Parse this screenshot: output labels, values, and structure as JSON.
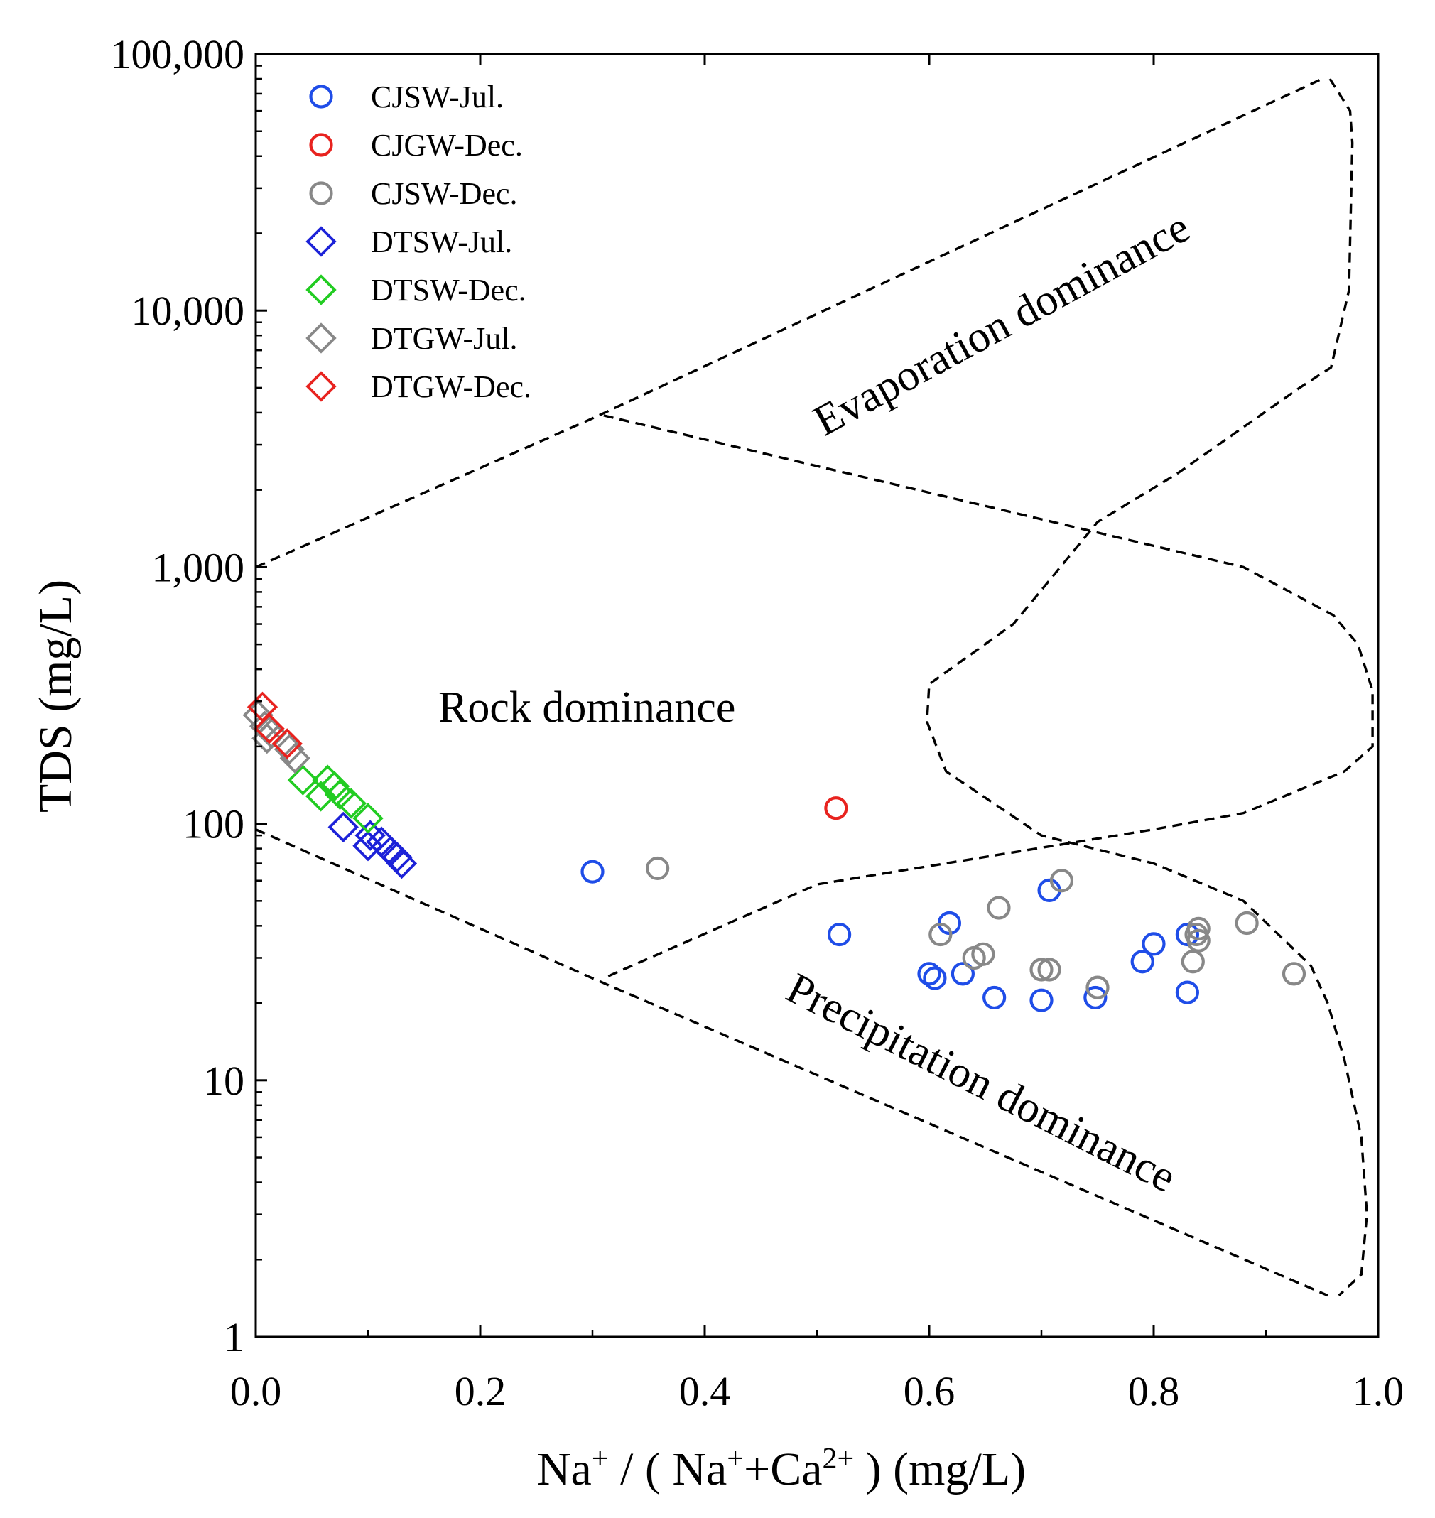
{
  "chart_data": {
    "type": "scatter",
    "title": "",
    "xlabel": "Na⁺ / ( Na⁺+Ca²⁺ ) (mg/L)",
    "xlabel_parts": {
      "a": "Na",
      "sup1": "+",
      "b": " / ( Na",
      "sup2": "+",
      "c": "+Ca",
      "sup3": "2+",
      "d": " ) (mg/L)"
    },
    "ylabel": "TDS (mg/L)",
    "xlim": [
      0.0,
      1.0
    ],
    "ylim": [
      1,
      100000
    ],
    "yscale": "log",
    "xticks": [
      0.0,
      0.2,
      0.4,
      0.6,
      0.8,
      1.0
    ],
    "xtick_labels": [
      "0.0",
      "0.2",
      "0.4",
      "0.6",
      "0.8",
      "1.0"
    ],
    "yticks": [
      1,
      10,
      100,
      1000,
      10000,
      100000
    ],
    "ytick_labels": [
      "1",
      "10",
      "100",
      "1,000",
      "10,000",
      "100,000"
    ],
    "legend_position": "top-left",
    "grid": false,
    "series": [
      {
        "name": "CJSW-Jul.",
        "marker": "circle",
        "color": "#1f4de8",
        "points": [
          [
            0.3,
            65
          ],
          [
            0.52,
            37
          ],
          [
            0.6,
            26
          ],
          [
            0.605,
            25
          ],
          [
            0.618,
            41
          ],
          [
            0.63,
            26
          ],
          [
            0.658,
            21
          ],
          [
            0.7,
            20.5
          ],
          [
            0.707,
            55
          ],
          [
            0.748,
            21
          ],
          [
            0.79,
            29
          ],
          [
            0.8,
            34
          ],
          [
            0.83,
            37
          ],
          [
            0.83,
            22
          ]
        ]
      },
      {
        "name": "CJGW-Dec.",
        "marker": "circle",
        "color": "#e8231f",
        "points": [
          [
            0.517,
            115
          ]
        ]
      },
      {
        "name": "CJSW-Dec.",
        "marker": "circle",
        "color": "#888888",
        "points": [
          [
            0.358,
            67
          ],
          [
            0.61,
            37
          ],
          [
            0.64,
            30
          ],
          [
            0.648,
            31
          ],
          [
            0.662,
            47
          ],
          [
            0.7,
            27
          ],
          [
            0.707,
            27
          ],
          [
            0.718,
            60
          ],
          [
            0.75,
            23
          ],
          [
            0.835,
            29
          ],
          [
            0.838,
            37
          ],
          [
            0.84,
            39
          ],
          [
            0.84,
            35
          ],
          [
            0.883,
            41
          ],
          [
            0.925,
            26
          ]
        ]
      },
      {
        "name": "DTSW-Jul.",
        "marker": "diamond",
        "color": "#1c22d8",
        "points": [
          [
            0.078,
            97
          ],
          [
            0.1,
            82
          ],
          [
            0.102,
            90
          ],
          [
            0.112,
            85
          ],
          [
            0.12,
            78
          ],
          [
            0.126,
            74
          ],
          [
            0.13,
            70
          ]
        ]
      },
      {
        "name": "DTSW-Dec.",
        "marker": "diamond",
        "color": "#22cc22",
        "points": [
          [
            0.042,
            148
          ],
          [
            0.058,
            128
          ],
          [
            0.064,
            148
          ],
          [
            0.07,
            140
          ],
          [
            0.075,
            130
          ],
          [
            0.085,
            120
          ],
          [
            0.1,
            105
          ]
        ]
      },
      {
        "name": "DTGW-Jul.",
        "marker": "diamond",
        "color": "#888888",
        "points": [
          [
            0.002,
            265
          ],
          [
            0.008,
            240
          ],
          [
            0.01,
            215
          ],
          [
            0.014,
            225
          ],
          [
            0.03,
            195
          ],
          [
            0.035,
            180
          ]
        ]
      },
      {
        "name": "DTGW-Dec.",
        "marker": "diamond",
        "color": "#e8231f",
        "points": [
          [
            0.006,
            285
          ],
          [
            0.012,
            235
          ],
          [
            0.028,
            205
          ]
        ]
      }
    ],
    "boundaries": [
      {
        "name": "upper-left-line",
        "points": [
          [
            0.0,
            1000
          ],
          [
            0.3,
            3800
          ],
          [
            0.95,
            80000
          ]
        ]
      },
      {
        "name": "middle-line",
        "points": [
          [
            0.31,
            3900
          ],
          [
            0.88,
            1000
          ],
          [
            0.96,
            650
          ],
          [
            0.982,
            500
          ],
          [
            0.995,
            330
          ],
          [
            0.995,
            200
          ],
          [
            0.97,
            160
          ],
          [
            0.88,
            110
          ],
          [
            0.8,
            95
          ],
          [
            0.5,
            58
          ],
          [
            0.31,
            25
          ]
        ]
      },
      {
        "name": "evaporation-right-curve",
        "points": [
          [
            0.957,
            80000
          ],
          [
            0.975,
            60000
          ],
          [
            0.977,
            45000
          ],
          [
            0.974,
            12000
          ],
          [
            0.958,
            6000
          ],
          [
            0.93,
            5000
          ],
          [
            0.82,
            2300
          ],
          [
            0.75,
            1500
          ],
          [
            0.675,
            600
          ],
          [
            0.6,
            350
          ],
          [
            0.598,
            250
          ],
          [
            0.615,
            160
          ],
          [
            0.7,
            90
          ],
          [
            0.8,
            70
          ],
          [
            0.88,
            50
          ],
          [
            0.94,
            28
          ],
          [
            0.955,
            20
          ],
          [
            0.97,
            12
          ],
          [
            0.985,
            6
          ],
          [
            0.99,
            3
          ],
          [
            0.985,
            1.75
          ],
          [
            0.965,
            1.45
          ]
        ]
      },
      {
        "name": "lower-left-line",
        "points": [
          [
            0.0,
            95
          ],
          [
            0.3,
            25
          ],
          [
            0.955,
            1.45
          ]
        ]
      }
    ],
    "annotations": [
      {
        "name": "evaporation-label",
        "text": "Evaporation dominance"
      },
      {
        "name": "rock-label",
        "text": "Rock dominance"
      },
      {
        "name": "precipitation-label",
        "text": "Precipitation dominance"
      }
    ]
  }
}
